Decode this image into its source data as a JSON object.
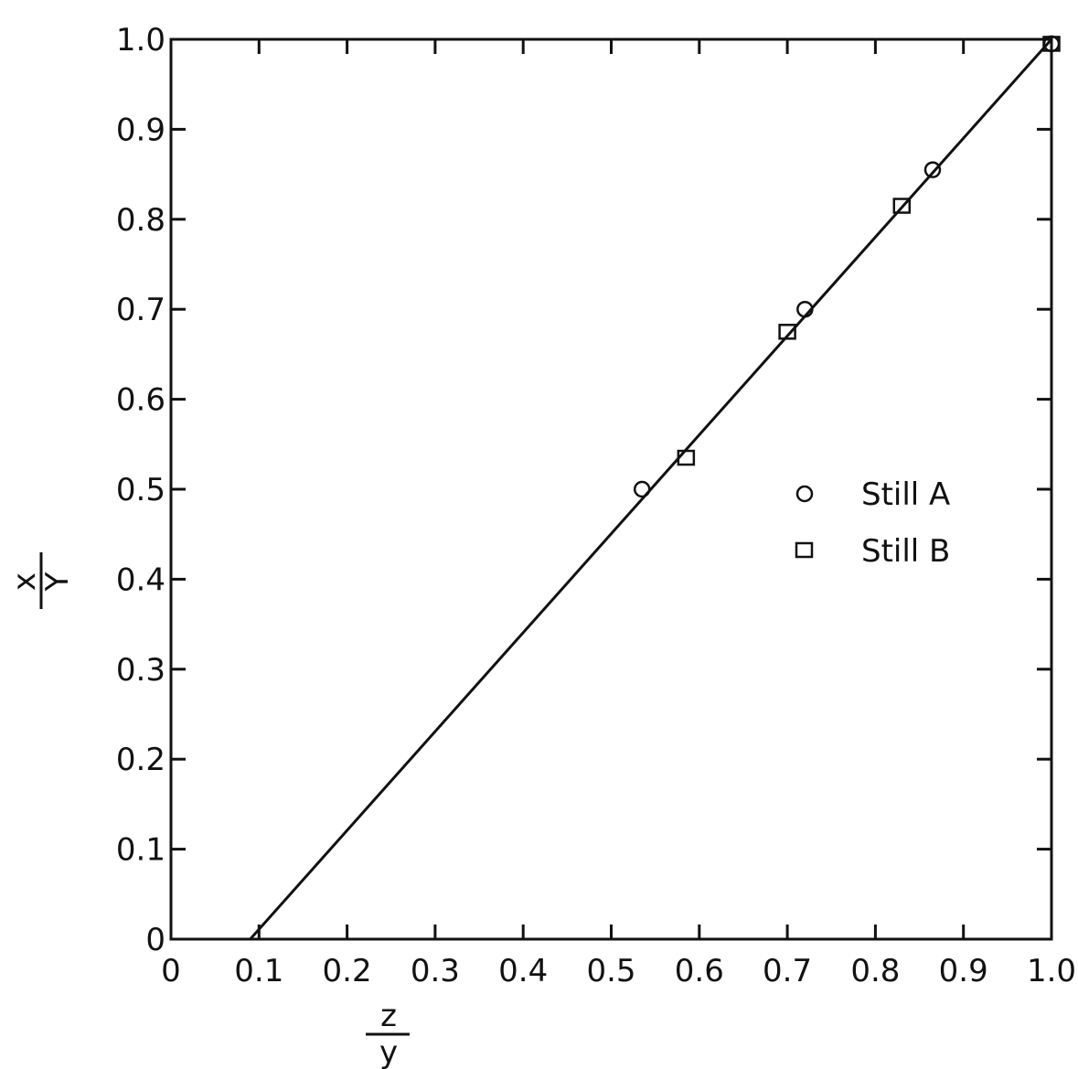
{
  "chart_data": {
    "type": "scatter",
    "title": "",
    "xlabel": {
      "numerator": "z",
      "denominator": "y"
    },
    "ylabel": {
      "numerator": "x",
      "denominator": "Y"
    },
    "xlim": [
      0,
      1.0
    ],
    "ylim": [
      0,
      1.0
    ],
    "x_ticks": [
      "0",
      "0.1",
      "0.2",
      "0.3",
      "0.4",
      "0.5",
      "0.6",
      "0.7",
      "0.8",
      "0.9",
      "1.0"
    ],
    "y_ticks": [
      "0",
      "0.1",
      "0.2",
      "0.3",
      "0.4",
      "0.5",
      "0.6",
      "0.7",
      "0.8",
      "0.9",
      "1.0"
    ],
    "grid": false,
    "legend_position": "right-center",
    "series": [
      {
        "name": "Still A",
        "marker": "circle",
        "points": [
          {
            "x": 0.535,
            "y": 0.5
          },
          {
            "x": 0.72,
            "y": 0.7
          },
          {
            "x": 0.865,
            "y": 0.855
          },
          {
            "x": 1.0,
            "y": 0.995
          }
        ]
      },
      {
        "name": "Still B",
        "marker": "square",
        "points": [
          {
            "x": 0.585,
            "y": 0.535
          },
          {
            "x": 0.7,
            "y": 0.675
          },
          {
            "x": 0.83,
            "y": 0.815
          },
          {
            "x": 1.0,
            "y": 0.995
          }
        ]
      }
    ],
    "fit_line": {
      "points": [
        {
          "x": 0.09,
          "y": 0.0
        },
        {
          "x": 1.0,
          "y": 1.0
        }
      ]
    },
    "colors": {
      "ink": "#111111",
      "background": "#ffffff"
    }
  }
}
